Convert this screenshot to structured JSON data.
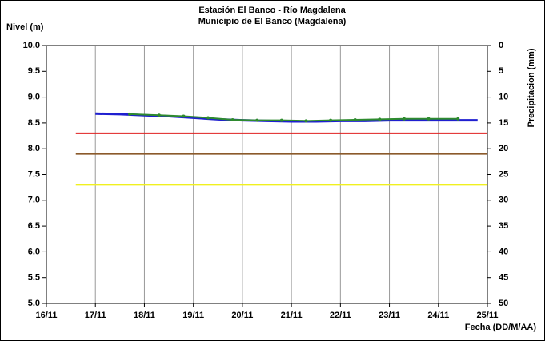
{
  "chart_data": {
    "type": "line",
    "title": "Estación El Banco - Río Magdalena",
    "subtitle": "Municipio de El Banco (Magdalena)",
    "ylabel": "Nivel (m)",
    "y2label": "Precipitacion (mm)",
    "xlabel": "Fecha (DD/M/AA)",
    "xlim": [
      16,
      25
    ],
    "xticks": [
      {
        "value": 16,
        "label": "16/11"
      },
      {
        "value": 17,
        "label": "17/11"
      },
      {
        "value": 18,
        "label": "18/11"
      },
      {
        "value": 19,
        "label": "19/11"
      },
      {
        "value": 20,
        "label": "20/11"
      },
      {
        "value": 21,
        "label": "21/11"
      },
      {
        "value": 22,
        "label": "22/11"
      },
      {
        "value": 23,
        "label": "23/11"
      },
      {
        "value": 24,
        "label": "24/11"
      },
      {
        "value": 25,
        "label": "25/11"
      }
    ],
    "ylim": [
      5,
      10
    ],
    "yticks": [
      {
        "value": 5,
        "label": "5.0"
      },
      5.5,
      {
        "value": 6,
        "label": "6.0"
      },
      6.5,
      {
        "value": 7,
        "label": "7.0"
      },
      7.5,
      {
        "value": 8,
        "label": "8.0"
      },
      8.5,
      {
        "value": 9,
        "label": "9.0"
      },
      9.5,
      {
        "value": 10,
        "label": "10.0"
      }
    ],
    "y2lim": [
      50,
      0
    ],
    "y2ticks": [
      0,
      5,
      10,
      15,
      20,
      25,
      30,
      35,
      40,
      45,
      50
    ],
    "grid": "x",
    "series": [
      {
        "color": "#1f1fd0",
        "width": 3,
        "x": [
          17,
          17.5,
          18,
          18.5,
          19,
          19.5,
          20,
          20.5,
          21,
          21.5,
          22,
          22.5,
          23,
          23.5,
          24,
          24.8
        ],
        "values": [
          8.68,
          8.67,
          8.65,
          8.63,
          8.6,
          8.57,
          8.55,
          8.54,
          8.53,
          8.53,
          8.54,
          8.54,
          8.55,
          8.55,
          8.55,
          8.55
        ]
      },
      {
        "color": "#2e8b2e",
        "width": 2,
        "marker": true,
        "x": [
          17.7,
          18.3,
          18.8,
          19.3,
          19.8,
          20.3,
          20.8,
          21.3,
          21.8,
          22.3,
          22.8,
          23.3,
          23.8,
          24.4
        ],
        "values": [
          8.67,
          8.65,
          8.63,
          8.6,
          8.56,
          8.55,
          8.55,
          8.54,
          8.55,
          8.56,
          8.57,
          8.58,
          8.58,
          8.58
        ]
      },
      {
        "color": "#e02020",
        "width": 2,
        "x": [
          16.6,
          25
        ],
        "values": [
          8.3,
          8.3
        ]
      },
      {
        "color": "#8b5a2b",
        "width": 2,
        "x": [
          16.6,
          25
        ],
        "values": [
          7.9,
          7.9
        ]
      },
      {
        "color": "#f0f020",
        "width": 2,
        "x": [
          16.6,
          25
        ],
        "values": [
          7.3,
          7.3
        ]
      }
    ]
  }
}
